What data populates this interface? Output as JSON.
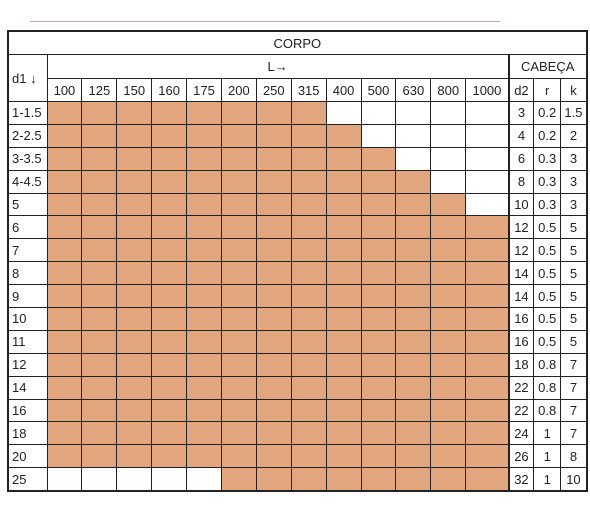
{
  "header": {
    "title": "CORPO",
    "d1": "d1 ↓",
    "l": "L→",
    "head": "CABEÇA"
  },
  "columns": {
    "l": [
      "100",
      "125",
      "150",
      "160",
      "175",
      "200",
      "250",
      "315",
      "400",
      "500",
      "630",
      "800",
      "1000"
    ],
    "d2": "d2",
    "r": "r",
    "k": "k"
  },
  "cell_fill": "#e2a67f",
  "rows": [
    {
      "d1": "1-1.5",
      "filled": [
        true,
        true,
        true,
        true,
        true,
        true,
        true,
        true,
        false,
        false,
        false,
        false,
        false
      ],
      "d2": "3",
      "r": "0.2",
      "k": "1.5"
    },
    {
      "d1": "2-2.5",
      "filled": [
        true,
        true,
        true,
        true,
        true,
        true,
        true,
        true,
        true,
        false,
        false,
        false,
        false
      ],
      "d2": "4",
      "r": "0.2",
      "k": "2"
    },
    {
      "d1": "3-3.5",
      "filled": [
        true,
        true,
        true,
        true,
        true,
        true,
        true,
        true,
        true,
        true,
        false,
        false,
        false
      ],
      "d2": "6",
      "r": "0.3",
      "k": "3"
    },
    {
      "d1": "4-4.5",
      "filled": [
        true,
        true,
        true,
        true,
        true,
        true,
        true,
        true,
        true,
        true,
        true,
        false,
        false
      ],
      "d2": "8",
      "r": "0.3",
      "k": "3"
    },
    {
      "d1": "5",
      "filled": [
        true,
        true,
        true,
        true,
        true,
        true,
        true,
        true,
        true,
        true,
        true,
        true,
        false
      ],
      "d2": "10",
      "r": "0.3",
      "k": "3"
    },
    {
      "d1": "6",
      "filled": [
        true,
        true,
        true,
        true,
        true,
        true,
        true,
        true,
        true,
        true,
        true,
        true,
        true
      ],
      "d2": "12",
      "r": "0.5",
      "k": "5"
    },
    {
      "d1": "7",
      "filled": [
        true,
        true,
        true,
        true,
        true,
        true,
        true,
        true,
        true,
        true,
        true,
        true,
        true
      ],
      "d2": "12",
      "r": "0.5",
      "k": "5"
    },
    {
      "d1": "8",
      "filled": [
        true,
        true,
        true,
        true,
        true,
        true,
        true,
        true,
        true,
        true,
        true,
        true,
        true
      ],
      "d2": "14",
      "r": "0.5",
      "k": "5"
    },
    {
      "d1": "9",
      "filled": [
        true,
        true,
        true,
        true,
        true,
        true,
        true,
        true,
        true,
        true,
        true,
        true,
        true
      ],
      "d2": "14",
      "r": "0.5",
      "k": "5"
    },
    {
      "d1": "10",
      "filled": [
        true,
        true,
        true,
        true,
        true,
        true,
        true,
        true,
        true,
        true,
        true,
        true,
        true
      ],
      "d2": "16",
      "r": "0.5",
      "k": "5"
    },
    {
      "d1": "11",
      "filled": [
        true,
        true,
        true,
        true,
        true,
        true,
        true,
        true,
        true,
        true,
        true,
        true,
        true
      ],
      "d2": "16",
      "r": "0.5",
      "k": "5"
    },
    {
      "d1": "12",
      "filled": [
        true,
        true,
        true,
        true,
        true,
        true,
        true,
        true,
        true,
        true,
        true,
        true,
        true
      ],
      "d2": "18",
      "r": "0.8",
      "k": "7"
    },
    {
      "d1": "14",
      "filled": [
        true,
        true,
        true,
        true,
        true,
        true,
        true,
        true,
        true,
        true,
        true,
        true,
        true
      ],
      "d2": "22",
      "r": "0.8",
      "k": "7"
    },
    {
      "d1": "16",
      "filled": [
        true,
        true,
        true,
        true,
        true,
        true,
        true,
        true,
        true,
        true,
        true,
        true,
        true
      ],
      "d2": "22",
      "r": "0.8",
      "k": "7"
    },
    {
      "d1": "18",
      "filled": [
        true,
        true,
        true,
        true,
        true,
        true,
        true,
        true,
        true,
        true,
        true,
        true,
        true
      ],
      "d2": "24",
      "r": "1",
      "k": "7"
    },
    {
      "d1": "20",
      "filled": [
        true,
        true,
        true,
        true,
        true,
        true,
        true,
        true,
        true,
        true,
        true,
        true,
        true
      ],
      "d2": "26",
      "r": "1",
      "k": "8"
    },
    {
      "d1": "25",
      "filled": [
        false,
        false,
        false,
        false,
        false,
        true,
        true,
        true,
        true,
        true,
        true,
        true,
        true
      ],
      "d2": "32",
      "r": "1",
      "k": "10"
    }
  ]
}
